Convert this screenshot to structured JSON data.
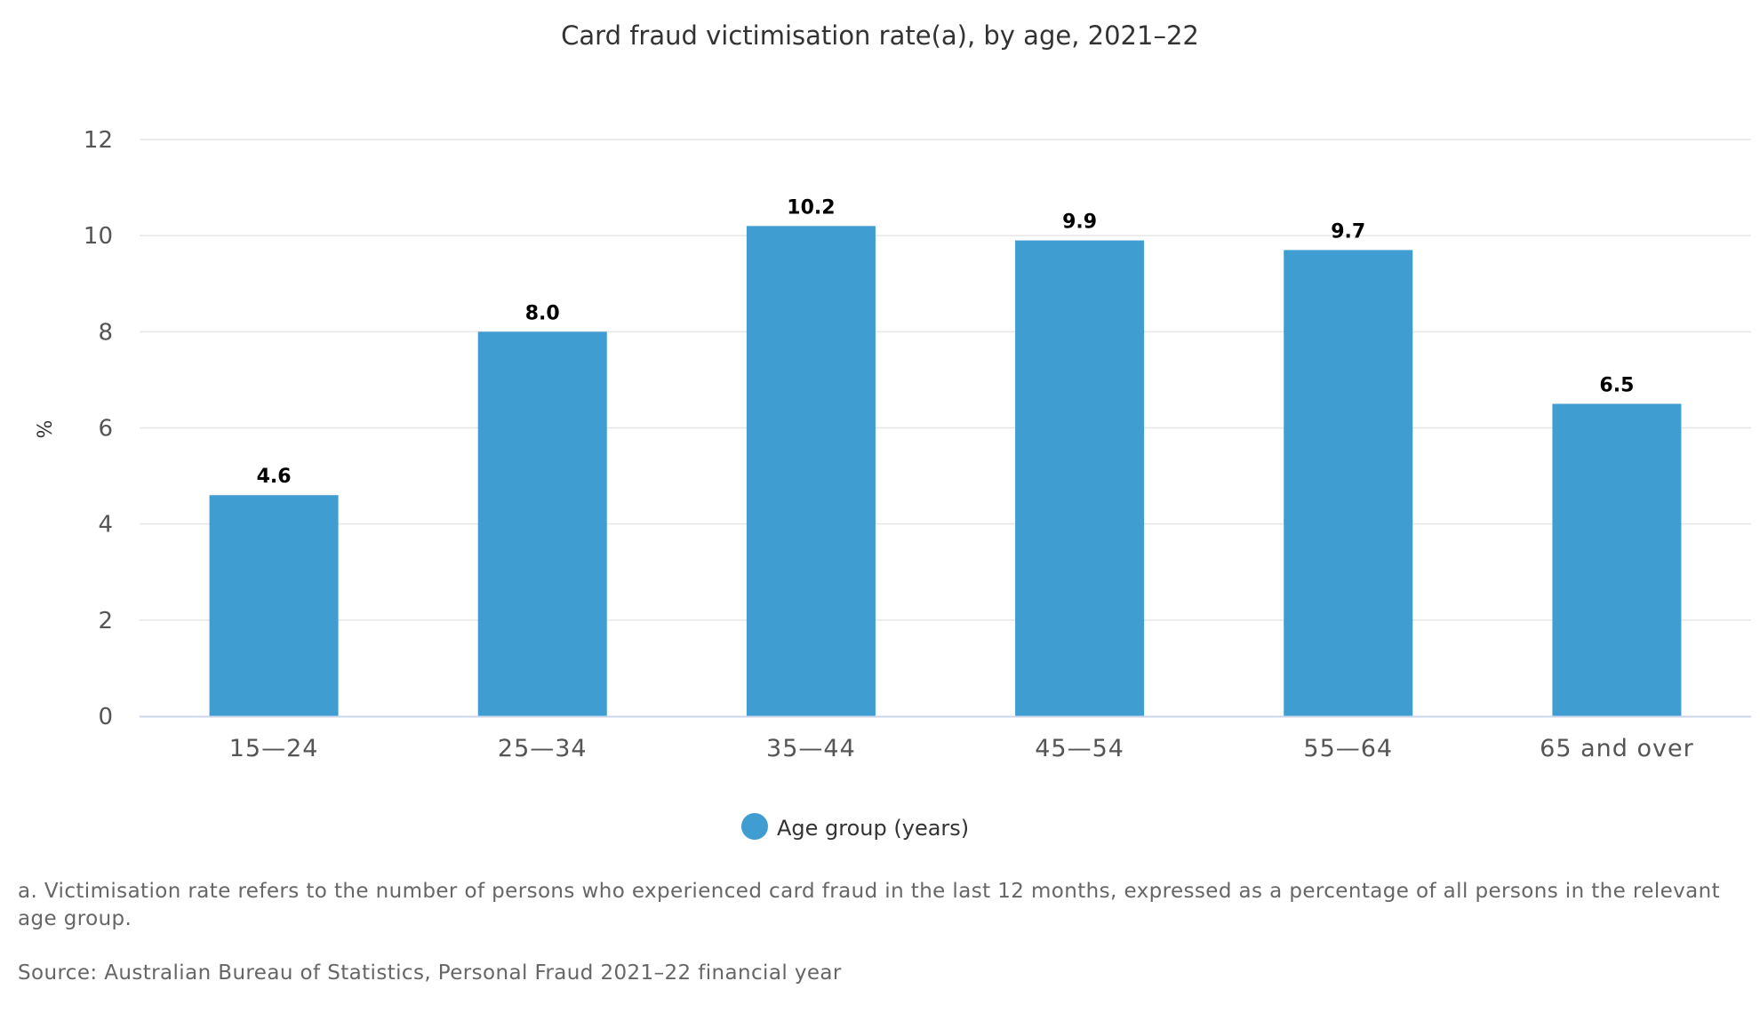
{
  "chart_data": {
    "type": "bar",
    "title": "Card fraud victimisation rate(a), by age, 2021–22",
    "ylabel": "%",
    "xlabel": "",
    "ylim": [
      0,
      12
    ],
    "yticks": [
      "0",
      "2",
      "4",
      "6",
      "8",
      "10",
      "12"
    ],
    "categories": [
      "15—24",
      "25—34",
      "35—44",
      "45—54",
      "55—64",
      "65 and over"
    ],
    "series": [
      {
        "name": "Age group (years)",
        "values": [
          4.6,
          8.0,
          10.2,
          9.9,
          9.7,
          6.5
        ],
        "labels": [
          "4.6",
          "8.0",
          "10.2",
          "9.9",
          "9.7",
          "6.5"
        ]
      }
    ],
    "grid": true,
    "legend_position": "bottom-center",
    "colors": {
      "bar": "#3f9dd1",
      "grid": "#e6e6e6",
      "axis": "#ccd6eb"
    }
  },
  "notes": {
    "footnote": "a. Victimisation rate refers to the number of persons who experienced card fraud in the last 12 months, expressed as a percentage of all persons in the relevant age group.",
    "source": "Source: Australian Bureau of Statistics, Personal Fraud 2021–22 financial year"
  }
}
